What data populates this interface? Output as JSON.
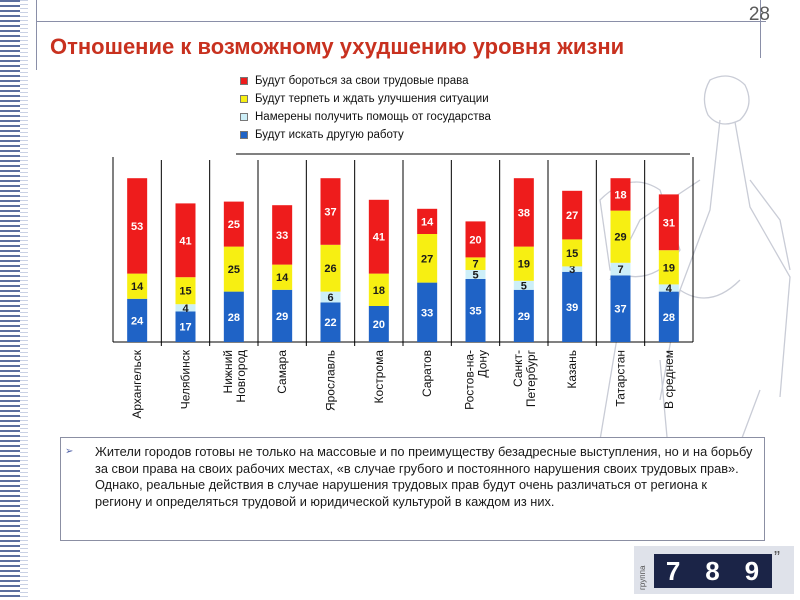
{
  "page_number": "28",
  "title": "Отношение к возможному ухудшению уровня жизни",
  "chart_data": {
    "type": "bar",
    "stacked": true,
    "categories": [
      "Архангельск",
      "Челябинск",
      "Нижний Новгород",
      "Самара",
      "Ярославль",
      "Кострома",
      "Саратов",
      "Ростов-на-Дону",
      "Санкт-Петербург",
      "Казань",
      "Татарстан",
      "В среднем"
    ],
    "category_lines": [
      [
        "Архангельск"
      ],
      [
        "Челябинск"
      ],
      [
        "Нижний",
        "Новгород"
      ],
      [
        "Самара"
      ],
      [
        "Ярославль"
      ],
      [
        "Кострома"
      ],
      [
        "Саратов"
      ],
      [
        "Ростов-на-",
        "Дону"
      ],
      [
        "Санкт-",
        "Петербург"
      ],
      [
        "Казань"
      ],
      [
        "Татарстан"
      ],
      [
        "В среднем"
      ]
    ],
    "series": [
      {
        "name": "Будут искать другую работу",
        "color": "#1f63c6",
        "values": [
          24,
          17,
          28,
          29,
          22,
          20,
          33,
          35,
          29,
          39,
          37,
          28
        ]
      },
      {
        "name": "Намерены получить помощь от государства",
        "color": "#cdeff8",
        "values": [
          null,
          4,
          null,
          null,
          6,
          null,
          null,
          5,
          5,
          3,
          7,
          4
        ]
      },
      {
        "name": "Будут терпеть и ждать улучшения ситуации",
        "color": "#f7ef12",
        "values": [
          14,
          15,
          25,
          14,
          26,
          18,
          27,
          7,
          19,
          15,
          29,
          19
        ]
      },
      {
        "name": "Будут бороться за свои трудовые права",
        "color": "#ee1c1c",
        "values": [
          53,
          41,
          25,
          33,
          37,
          41,
          14,
          20,
          38,
          27,
          18,
          31
        ]
      }
    ],
    "legend_order": [
      3,
      2,
      1,
      0
    ],
    "ylim": [
      0,
      100
    ],
    "title": "",
    "xlabel": "",
    "ylabel": ""
  },
  "caption": {
    "text": "Жители городов готовы не только на массовые и по преимуществу безадресные выступления, но и на борьбу за свои права на своих рабочих местах, «в случае грубого и постоянного нарушения своих трудовых прав». Однако, реальные действия в случае нарушения трудовых прав будут очень различаться от региона к региону и определяться трудовой и юридической культурой в каждом из них.",
    "bullet": "➢"
  },
  "logo": {
    "side_text": "группа",
    "digits": [
      "7",
      "8",
      "9"
    ],
    "quote": "”"
  }
}
